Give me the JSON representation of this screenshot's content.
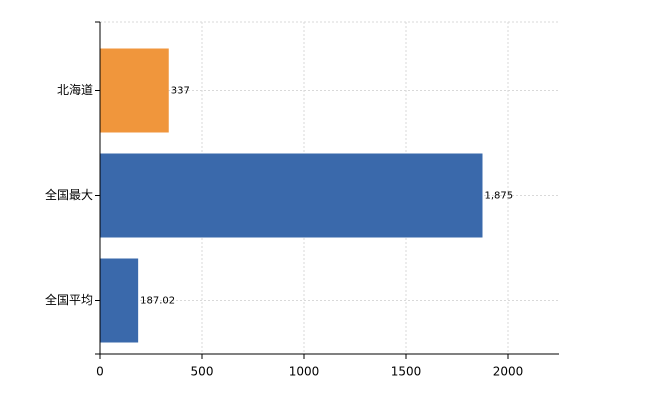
{
  "chart_data": {
    "type": "hbar",
    "categories": [
      "北海道",
      "全国最大",
      "全国平均"
    ],
    "values": [
      337,
      1875,
      187.02
    ],
    "value_labels": [
      "337",
      "1,875",
      "187.02"
    ],
    "colors": [
      "#f0963c",
      "#3a69ab",
      "#3a69ab"
    ],
    "xlim": [
      0,
      2250
    ],
    "xticks": [
      0,
      500,
      1000,
      1500,
      2000
    ],
    "grid": true
  }
}
